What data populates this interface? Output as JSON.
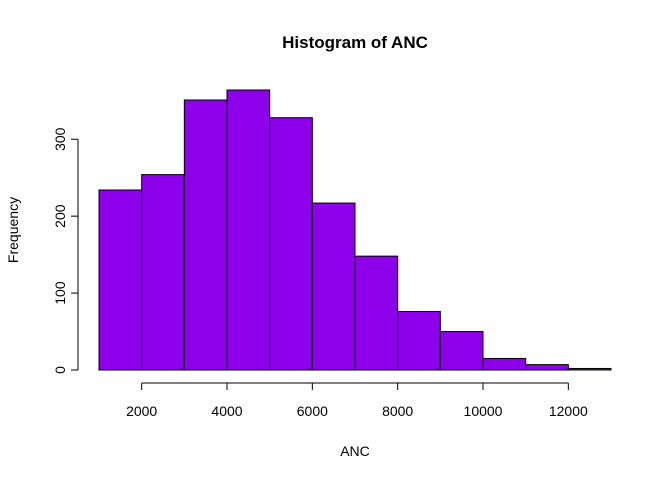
{
  "chart_data": {
    "type": "bar",
    "subtype": "histogram",
    "title": "Histogram of ANC",
    "xlabel": "ANC",
    "ylabel": "Frequency",
    "bins": [
      [
        1000,
        2000
      ],
      [
        2000,
        3000
      ],
      [
        3000,
        4000
      ],
      [
        4000,
        5000
      ],
      [
        5000,
        6000
      ],
      [
        6000,
        7000
      ],
      [
        7000,
        8000
      ],
      [
        8000,
        9000
      ],
      [
        9000,
        10000
      ],
      [
        10000,
        11000
      ],
      [
        11000,
        12000
      ],
      [
        12000,
        13000
      ]
    ],
    "values": [
      234,
      254,
      351,
      364,
      328,
      217,
      148,
      76,
      50,
      15,
      7,
      2
    ],
    "xlim": [
      1000,
      13000
    ],
    "ylim": [
      0,
      364
    ],
    "xticks": [
      2000,
      4000,
      6000,
      8000,
      10000,
      12000
    ],
    "yticks": [
      0,
      100,
      200,
      300
    ],
    "bar_color": "#8e00ec",
    "bar_border": "#000000",
    "grid": false
  }
}
